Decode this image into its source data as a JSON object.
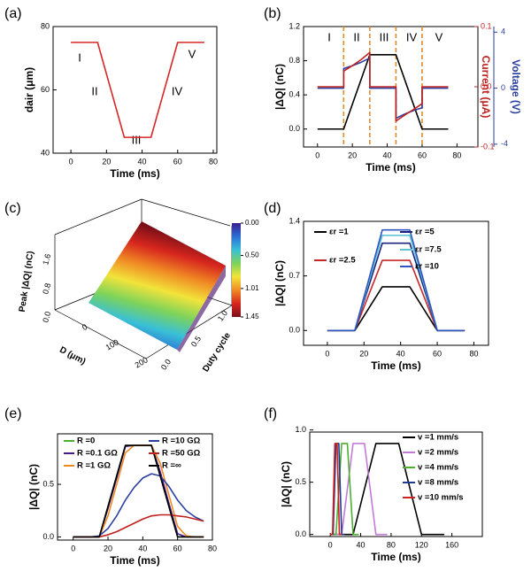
{
  "chart_data": [
    {
      "type": "line",
      "panel_label": "(a)",
      "xlabel": "Time (ms)",
      "ylabel": "dair (μm)",
      "x": [
        0,
        15,
        30,
        45,
        60,
        75
      ],
      "series": [
        {
          "color": "#d62728",
          "values": [
            75,
            75,
            45,
            45,
            75,
            75
          ]
        }
      ],
      "xlim": [
        -10,
        82
      ],
      "xticks": [
        0,
        20,
        40,
        60,
        80
      ],
      "ylim": [
        40,
        80
      ],
      "yticks": [
        40,
        60,
        80
      ],
      "annotations": [
        "I",
        "II",
        "III",
        "IV",
        "V"
      ]
    },
    {
      "type": "line",
      "panel_label": "(b)",
      "xlabel": "Time (ms)",
      "ylabel": "|ΔQ| (nC)",
      "y2label": "Current (μA)",
      "y3label": "Voltage (V)",
      "series": [
        {
          "color": "#000000",
          "x": [
            0,
            15,
            30,
            45,
            60,
            75
          ],
          "values": [
            0,
            0,
            0.87,
            0.87,
            0,
            0
          ]
        },
        {
          "color": "#2a3fa0",
          "axis": "y3",
          "x": [
            0,
            15,
            15,
            20,
            25,
            30,
            30,
            45,
            45,
            50,
            55,
            60,
            60,
            75
          ],
          "values": [
            0,
            0,
            1.4,
            1.6,
            1.85,
            2.15,
            0,
            0,
            -2.15,
            -1.85,
            -1.6,
            -1.4,
            0,
            0
          ]
        },
        {
          "color": "#c0201e",
          "axis": "y2",
          "x": [
            0,
            15,
            15,
            20,
            25,
            30,
            30,
            45,
            45,
            50,
            55,
            60,
            60,
            75
          ],
          "values": [
            0,
            0,
            0.026,
            0.035,
            0.045,
            0.057,
            0,
            0,
            -0.057,
            -0.047,
            -0.038,
            -0.028,
            0,
            0
          ]
        }
      ],
      "xlim": [
        -8,
        92
      ],
      "xticks": [
        0,
        20,
        40,
        60,
        80
      ],
      "ylim": [
        -0.21,
        1.2
      ],
      "yticks": [
        {
          "value": 0,
          "label": "0.0"
        },
        0.4,
        0.8,
        1.2
      ],
      "y2lim": [
        -0.1,
        0.1
      ],
      "y2ticks": [
        -0.1,
        {
          "value": 0,
          "label": "0.0"
        },
        0.1
      ],
      "y3lim": [
        -4.2,
        4.4
      ],
      "y3ticks": [
        -4,
        0,
        4
      ],
      "vlines": [
        15,
        30,
        45,
        60
      ],
      "vline_color": "#e08a2c",
      "annotations": [
        "I",
        "II",
        "III",
        "IV",
        "V"
      ]
    },
    {
      "type": "surface",
      "panel_label": "(c)",
      "zlabel": "Peak |ΔQ| (nC)",
      "xlabel": "D (μm)",
      "ylabel": "Duty cycle",
      "zticks": [
        {
          "value": 0,
          "label": "0.0"
        },
        0.8,
        1.6
      ],
      "xticks": [
        0,
        100,
        200
      ],
      "yticks": [
        {
          "value": 0,
          "label": "0.0"
        },
        {
          "value": 0.5,
          "label": "0.5"
        },
        {
          "value": 1,
          "label": "1.0"
        }
      ],
      "clim": [
        0,
        1.45
      ],
      "cticks": [
        {
          "value": 0,
          "label": "0.00"
        },
        {
          "value": 0.5,
          "label": "0.50"
        },
        1.01,
        1.45
      ],
      "colormap": [
        "#3b1d8f",
        "#2a6fd6",
        "#39c0d6",
        "#7dd35a",
        "#f2e43a",
        "#f08a24",
        "#d7261e",
        "#7a1018"
      ]
    },
    {
      "type": "line",
      "panel_label": "(d)",
      "xlabel": "Time (ms)",
      "ylabel": "|ΔQ| (nC)",
      "x": [
        0,
        15,
        30,
        45,
        60,
        75
      ],
      "series": [
        {
          "name": "εr =1",
          "color": "#000000",
          "values": [
            0,
            0,
            0.56,
            0.56,
            0,
            0
          ]
        },
        {
          "name": "εr =2.5",
          "color": "#c62828",
          "values": [
            0,
            0,
            0.9,
            0.9,
            0,
            0
          ]
        },
        {
          "name": "εr =5",
          "color": "#1a237e",
          "values": [
            0,
            0,
            1.12,
            1.12,
            0,
            0
          ]
        },
        {
          "name": "εr =7.5",
          "color": "#5fc4d6",
          "values": [
            0,
            0,
            1.22,
            1.22,
            0,
            0
          ]
        },
        {
          "name": "εr =10",
          "color": "#2f55c0",
          "values": [
            0,
            0,
            1.29,
            1.29,
            0,
            0
          ]
        }
      ],
      "xlim": [
        -13,
        88
      ],
      "xticks": [
        0,
        20,
        40,
        60,
        80
      ],
      "ylim": [
        -0.19,
        1.4
      ],
      "yticks": [
        {
          "value": 0,
          "label": "0.0"
        },
        0.7,
        1.4
      ]
    },
    {
      "type": "line",
      "panel_label": "(e)",
      "xlabel": "Time (ms)",
      "ylabel": "|ΔQ| (nC)",
      "x": [
        0,
        5,
        10,
        15,
        20,
        25,
        30,
        35,
        40,
        45,
        50,
        55,
        60,
        65,
        70,
        75
      ],
      "series": [
        {
          "name": "R =0",
          "color": "#4caf30",
          "values": [
            0,
            0,
            0,
            0,
            0.29,
            0.58,
            0.87,
            0.87,
            0.87,
            0.87,
            0.58,
            0.29,
            0,
            0,
            0,
            0
          ]
        },
        {
          "name": "R =0.1 GΩ",
          "color": "#4b1a8a",
          "values": [
            0,
            0,
            0,
            0,
            0.27,
            0.56,
            0.86,
            0.87,
            0.87,
            0.87,
            0.62,
            0.32,
            0.03,
            0,
            0,
            0
          ]
        },
        {
          "name": "R =1 GΩ",
          "color": "#f08a24",
          "values": [
            0,
            0,
            0,
            0,
            0.2,
            0.5,
            0.8,
            0.87,
            0.87,
            0.87,
            0.7,
            0.4,
            0.1,
            0.01,
            0,
            0
          ]
        },
        {
          "name": "R =10 GΩ",
          "color": "#2a3fa0",
          "values": [
            0,
            0,
            0,
            0.01,
            0.08,
            0.2,
            0.35,
            0.47,
            0.56,
            0.6,
            0.58,
            0.48,
            0.35,
            0.25,
            0.19,
            0.15
          ]
        },
        {
          "name": "R =50 GΩ",
          "color": "#c0201e",
          "values": [
            0,
            0,
            0,
            0,
            0.02,
            0.05,
            0.09,
            0.13,
            0.17,
            0.2,
            0.21,
            0.21,
            0.2,
            0.19,
            0.17,
            0.15
          ]
        },
        {
          "name": "R =∞",
          "color": "#000000",
          "values": [
            0,
            0,
            0,
            0,
            0.29,
            0.58,
            0.87,
            0.87,
            0.87,
            0.87,
            0.58,
            0.29,
            0,
            0,
            0,
            0
          ]
        }
      ],
      "xlim": [
        -9,
        80
      ],
      "xticks": [
        0,
        20,
        40,
        60,
        80
      ],
      "ylim": [
        -0.03,
        0.98
      ],
      "yticks": [
        {
          "value": 0,
          "label": "0.0"
        },
        0.5
      ]
    },
    {
      "type": "line",
      "panel_label": "(f)",
      "xlabel": "Time (ms)",
      "ylabel": "|ΔQ| (nC)",
      "series": [
        {
          "name": "v =1 mm/s",
          "color": "#000000",
          "x": [
            0,
            30,
            60,
            90,
            120,
            150
          ],
          "values": [
            0,
            0,
            0.87,
            0.87,
            0,
            0
          ]
        },
        {
          "name": "v =2 mm/s",
          "color": "#c27bd8",
          "x": [
            0,
            15,
            30,
            45,
            60,
            75
          ],
          "values": [
            0,
            0,
            0.87,
            0.87,
            0,
            0
          ]
        },
        {
          "name": "v =4 mm/s",
          "color": "#4caf30",
          "x": [
            0,
            7.5,
            15,
            22.5,
            30,
            37.5
          ],
          "values": [
            0,
            0,
            0.87,
            0.87,
            0,
            0
          ]
        },
        {
          "name": "v =8 mm/s",
          "color": "#1f3a93",
          "x": [
            0,
            3.75,
            7.5,
            11.25,
            15,
            18.75
          ],
          "values": [
            0,
            0,
            0.87,
            0.87,
            0,
            0
          ]
        },
        {
          "name": "v =10 mm/s",
          "color": "#d02020",
          "x": [
            0,
            3,
            6,
            9,
            12,
            15
          ],
          "values": [
            0,
            0,
            0.87,
            0.87,
            0,
            0
          ]
        }
      ],
      "xlim": [
        -27,
        200
      ],
      "xticks": [
        0,
        40,
        80,
        120,
        160
      ],
      "ylim": [
        -0.02,
        0.98
      ],
      "yticks": [
        {
          "value": 0,
          "label": "0.0"
        },
        0.5,
        {
          "value": 1,
          "label": "1.0"
        }
      ]
    }
  ]
}
